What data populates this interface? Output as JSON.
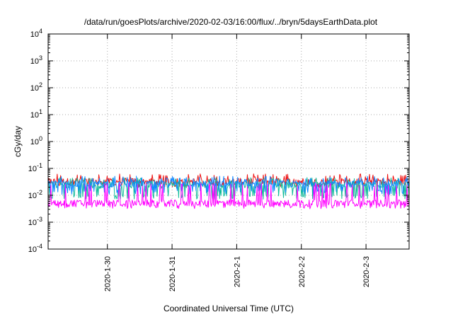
{
  "chart_data": {
    "type": "line",
    "title": "/data/run/goesPlots/archive/2020-02-03/16:00/flux/../bryn/5daysEarthData.plot",
    "xlabel": "Coordinated Universal Time (UTC)",
    "ylabel": "cGy/day",
    "yscale": "log",
    "ylim": [
      0.0001,
      10000
    ],
    "xlim": [
      "2020-01-29T02:00",
      "2020-02-03T16:00"
    ],
    "y_ticks": [
      {
        "base": "10",
        "exp": "-4"
      },
      {
        "base": "10",
        "exp": "-3"
      },
      {
        "base": "10",
        "exp": "-2"
      },
      {
        "base": "10",
        "exp": "-1"
      },
      {
        "base": "10",
        "exp": "0"
      },
      {
        "base": "10",
        "exp": "1"
      },
      {
        "base": "10",
        "exp": "2"
      },
      {
        "base": "10",
        "exp": "3"
      },
      {
        "base": "10",
        "exp": "4"
      }
    ],
    "x_ticks": [
      {
        "label": "2020-1-30",
        "date": "2020-01-30T00:00"
      },
      {
        "label": "2020-1-31",
        "date": "2020-01-31T00:00"
      },
      {
        "label": "2020-2-1",
        "date": "2020-02-01T00:00"
      },
      {
        "label": "2020-2-2",
        "date": "2020-02-02T00:00"
      },
      {
        "label": "2020-2-3",
        "date": "2020-02-03T00:00"
      }
    ],
    "grid": true,
    "legend": false,
    "series": [
      {
        "color": "#ee1111",
        "baseline": 0.032,
        "peak": 0.055,
        "low": 0.022
      },
      {
        "color": "#11bb99",
        "baseline": 0.024,
        "peak": 0.04,
        "low": 0.008
      },
      {
        "color": "#1188ff",
        "baseline": 0.026,
        "peak": 0.045,
        "low": 0.012
      },
      {
        "color": "#ff00ff",
        "baseline": 0.005,
        "peak": 0.025,
        "low": 0.0035
      }
    ]
  }
}
